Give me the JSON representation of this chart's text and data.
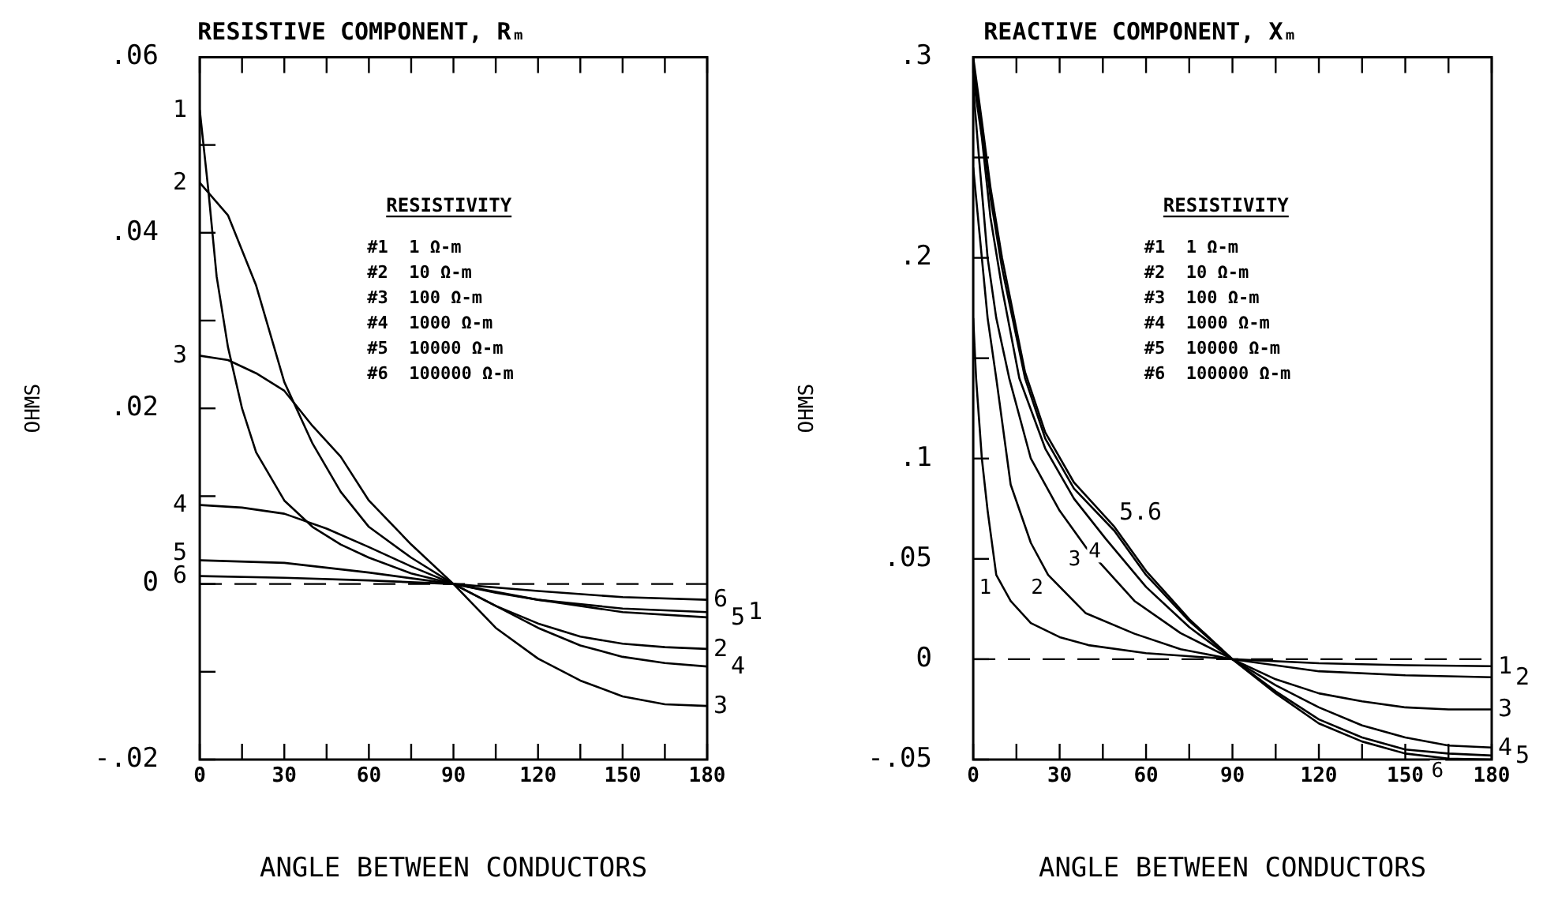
{
  "chart_data": [
    {
      "type": "line",
      "title": "RESISTIVE COMPONENT, Rₘ",
      "xlabel": "ANGLE BETWEEN CONDUCTORS",
      "ylabel": "OHMS",
      "marker": "none",
      "line_style": "solid",
      "legend": false,
      "xlim": [
        0,
        180
      ],
      "xticks": [
        0,
        {
          "value": 15,
          "label": null
        },
        30,
        {
          "value": 45,
          "label": null
        },
        60,
        {
          "value": 75,
          "label": null
        },
        90,
        {
          "value": 105,
          "label": null
        },
        120,
        {
          "value": 135,
          "label": null
        },
        150,
        {
          "value": 165,
          "label": null
        },
        180
      ],
      "ylim": [
        -0.02,
        0.06
      ],
      "yticks": [
        {
          "value": 0.06,
          "label": ".06"
        },
        {
          "value": 0.05,
          "label": null
        },
        {
          "value": 0.04,
          "label": ".04"
        },
        {
          "value": 0.03,
          "label": null
        },
        {
          "value": 0.02,
          "label": ".02"
        },
        {
          "value": 0.01,
          "label": null
        },
        0,
        {
          "value": -0.01,
          "label": null
        },
        {
          "value": -0.02,
          "label": "-.02"
        }
      ],
      "ref_lines": [
        {
          "axis": "y",
          "value": 0,
          "line_style": "dashed",
          "color": "#000000"
        }
      ],
      "series": [
        {
          "type": "line",
          "color": "#000000",
          "x": [
            0,
            3,
            6,
            10,
            15,
            20,
            30,
            40,
            50,
            60,
            75,
            90,
            105,
            120,
            150,
            180
          ],
          "values": [
            0.054,
            0.045,
            0.035,
            0.027,
            0.02,
            0.015,
            0.0095,
            0.0065,
            0.0045,
            0.003,
            0.0012,
            0,
            -0.001,
            -0.0018,
            -0.0028,
            -0.0032
          ]
        },
        {
          "type": "line",
          "color": "#000000",
          "x": [
            0,
            10,
            20,
            30,
            40,
            50,
            60,
            75,
            90,
            105,
            120,
            135,
            150,
            165,
            180
          ],
          "values": [
            0.0457,
            0.042,
            0.034,
            0.023,
            0.016,
            0.0105,
            0.0065,
            0.003,
            0,
            -0.0025,
            -0.0045,
            -0.006,
            -0.0068,
            -0.0072,
            -0.0074
          ]
        },
        {
          "type": "line",
          "color": "#000000",
          "x": [
            0,
            10,
            20,
            30,
            40,
            50,
            60,
            75,
            90,
            105,
            120,
            135,
            150,
            165,
            180
          ],
          "values": [
            0.026,
            0.0255,
            0.024,
            0.022,
            0.018,
            0.0145,
            0.0095,
            0.0045,
            0,
            -0.005,
            -0.0085,
            -0.011,
            -0.0128,
            -0.0137,
            -0.0139
          ]
        },
        {
          "type": "line",
          "color": "#000000",
          "x": [
            0,
            15,
            30,
            45,
            60,
            75,
            90,
            105,
            120,
            135,
            150,
            165,
            180
          ],
          "values": [
            0.009,
            0.0087,
            0.008,
            0.0063,
            0.0042,
            0.002,
            0,
            -0.0025,
            -0.005,
            -0.007,
            -0.0083,
            -0.009,
            -0.0094
          ]
        },
        {
          "type": "line",
          "color": "#000000",
          "x": [
            0,
            30,
            60,
            90,
            120,
            150,
            180
          ],
          "values": [
            0.0027,
            0.0024,
            0.0013,
            0,
            -0.0018,
            -0.0032,
            -0.0038
          ]
        },
        {
          "type": "line",
          "color": "#000000",
          "x": [
            0,
            30,
            60,
            90,
            120,
            150,
            180
          ],
          "values": [
            0.0009,
            0.0007,
            0.0004,
            0,
            -0.0008,
            -0.0015,
            -0.0018
          ]
        }
      ],
      "annotations": [
        "RESISTIVITY",
        "#1  1 Ω-m",
        "#2  10 Ω-m",
        "#3  100 Ω-m",
        "#4  1000 Ω-m",
        "#5  10000 Ω-m",
        "#6  100000 Ω-m",
        {
          "text": "1",
          "x": 0,
          "y": 0.054
        },
        {
          "text": "2",
          "x": 0,
          "y": 0.0457
        },
        {
          "text": "3",
          "x": 0,
          "y": 0.026
        },
        {
          "text": "4",
          "x": 0,
          "y": 0.009
        },
        {
          "text": "5",
          "x": 0,
          "y": 0.0035
        },
        {
          "text": "6",
          "x": 0,
          "y": 0.0009
        },
        {
          "text": "6",
          "x": 180,
          "y": -0.0018
        },
        {
          "text": "5",
          "x": 180,
          "y": -0.0038
        },
        {
          "text": "1",
          "x": 180,
          "y": -0.0032
        },
        {
          "text": "2",
          "x": 180,
          "y": -0.0074
        },
        {
          "text": "4",
          "x": 180,
          "y": -0.0094
        },
        {
          "text": "3",
          "x": 180,
          "y": -0.0139
        }
      ]
    },
    {
      "type": "line",
      "title": "REACTIVE COMPONENT, Xₘ",
      "xlabel": "ANGLE BETWEEN CONDUCTORS",
      "ylabel": "OHMS",
      "marker": "none",
      "line_style": "solid",
      "legend": false,
      "xlim": [
        0,
        180
      ],
      "xticks": [
        0,
        {
          "value": 15,
          "label": null
        },
        30,
        {
          "value": 45,
          "label": null
        },
        60,
        {
          "value": 75,
          "label": null
        },
        90,
        {
          "value": 105,
          "label": null
        },
        120,
        {
          "value": 135,
          "label": null
        },
        150,
        {
          "value": 165,
          "label": null
        },
        180
      ],
      "ylim": [
        -0.05,
        0.3
      ],
      "yticks": [
        {
          "value": 0.3,
          "label": ".3"
        },
        {
          "value": 0.25,
          "label": null
        },
        {
          "value": 0.2,
          "label": ".2"
        },
        {
          "value": 0.15,
          "label": null
        },
        {
          "value": 0.1,
          "label": ".1"
        },
        {
          "value": 0.05,
          "label": ".05"
        },
        0,
        {
          "value": -0.05,
          "label": "-.05"
        }
      ],
      "ref_lines": [
        {
          "axis": "y",
          "value": 0,
          "line_style": "dashed",
          "color": "#000000"
        }
      ],
      "series": [
        {
          "type": "line",
          "color": "#000000",
          "x": [
            0,
            1,
            3,
            5,
            8,
            13,
            20,
            30,
            40,
            60,
            90,
            120,
            150,
            180
          ],
          "values": [
            0.17,
            0.14,
            0.1,
            0.074,
            0.042,
            0.029,
            0.018,
            0.011,
            0.007,
            0.003,
            0,
            -0.002,
            -0.003,
            -0.0035
          ]
        },
        {
          "type": "line",
          "color": "#000000",
          "x": [
            0,
            3,
            5,
            8,
            13,
            20,
            26,
            39,
            56,
            72,
            90,
            120,
            150,
            180
          ],
          "values": [
            0.245,
            0.2,
            0.17,
            0.14,
            0.087,
            0.058,
            0.042,
            0.023,
            0.0127,
            0.005,
            0,
            -0.006,
            -0.008,
            -0.009
          ]
        },
        {
          "type": "line",
          "color": "#000000",
          "x": [
            0,
            2,
            5,
            8,
            12.5,
            20,
            30,
            39,
            56,
            72,
            90,
            105,
            120,
            135,
            150,
            165,
            180
          ],
          "values": [
            0.285,
            0.25,
            0.2,
            0.17,
            0.14,
            0.1,
            0.074,
            0.056,
            0.029,
            0.013,
            0,
            -0.01,
            -0.017,
            -0.021,
            -0.024,
            -0.025,
            -0.025
          ]
        },
        {
          "type": "line",
          "color": "#000000",
          "x": [
            0,
            3,
            6,
            10,
            16,
            25,
            35,
            46,
            60,
            75,
            90,
            105,
            120,
            135,
            150,
            165,
            180
          ],
          "values": [
            0.29,
            0.26,
            0.22,
            0.185,
            0.14,
            0.105,
            0.08,
            0.06,
            0.036,
            0.016,
            0,
            -0.013,
            -0.024,
            -0.033,
            -0.039,
            -0.043,
            -0.044
          ]
        },
        {
          "type": "line",
          "color": "#000000",
          "x": [
            0,
            3,
            6,
            10,
            18,
            25,
            35,
            49,
            60,
            75,
            90,
            105,
            120,
            135,
            150,
            165,
            180
          ],
          "values": [
            0.295,
            0.265,
            0.23,
            0.195,
            0.14,
            0.11,
            0.085,
            0.064,
            0.042,
            0.019,
            0,
            -0.016,
            -0.03,
            -0.039,
            -0.045,
            -0.047,
            -0.048
          ]
        },
        {
          "type": "line",
          "color": "#000000",
          "x": [
            0,
            3,
            6,
            10,
            18,
            25,
            35,
            49,
            60,
            75,
            90,
            105,
            120,
            135,
            150,
            165,
            180
          ],
          "values": [
            0.3,
            0.268,
            0.235,
            0.2,
            0.143,
            0.113,
            0.088,
            0.066,
            0.044,
            0.02,
            0,
            -0.017,
            -0.032,
            -0.041,
            -0.047,
            -0.0495,
            -0.05
          ]
        }
      ],
      "annotations": [
        "RESISTIVITY",
        "#1  1 Ω-m",
        "#2  10 Ω-m",
        "#3  100 Ω-m",
        "#4  1000 Ω-m",
        "#5  10000 Ω-m",
        "#6  100000 Ω-m",
        {
          "text": "1",
          "x": 8,
          "y": 0.042
        },
        {
          "text": "2",
          "x": 26,
          "y": 0.042
        },
        {
          "text": "3",
          "x": 39,
          "y": 0.056
        },
        {
          "text": "4",
          "x": 46,
          "y": 0.06
        },
        {
          "text": "5.6",
          "x": 49,
          "y": 0.066
        },
        {
          "text": "1",
          "x": 180,
          "y": -0.0035
        },
        {
          "text": "2",
          "x": 180,
          "y": -0.009
        },
        {
          "text": "3",
          "x": 180,
          "y": -0.025
        },
        {
          "text": "4",
          "x": 180,
          "y": -0.044
        },
        {
          "text": "5",
          "x": 180,
          "y": -0.048
        },
        {
          "text": "6",
          "x": 165,
          "y": -0.0495
        }
      ]
    }
  ]
}
